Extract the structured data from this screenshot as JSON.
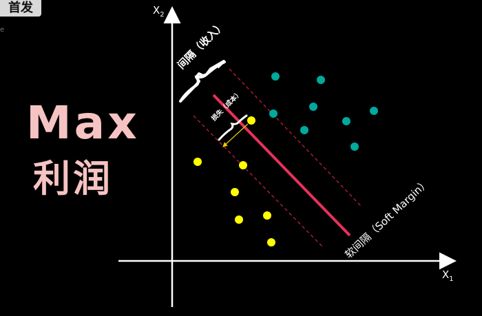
{
  "badge": {
    "text": "首发",
    "sub": "e"
  },
  "title": {
    "line1": "Max",
    "line2": "利润"
  },
  "axes": {
    "x_label": "X",
    "x_sub": "1",
    "y_label": "X",
    "y_sub": "2"
  },
  "annotations": {
    "margin_label": "间隔（收入）",
    "loss_label": "损失（成本）",
    "soft_margin_label": "软间隔（Soft Margin）"
  },
  "colors": {
    "background": "#000000",
    "axis": "#ffffff",
    "title": "#f6c3c3",
    "hyperplane": "#e8315a",
    "margin_lines": "#c0203c",
    "class_a": "#00a99d",
    "class_b": "#ffff00",
    "loss_arrow": "#e8d000"
  }
}
